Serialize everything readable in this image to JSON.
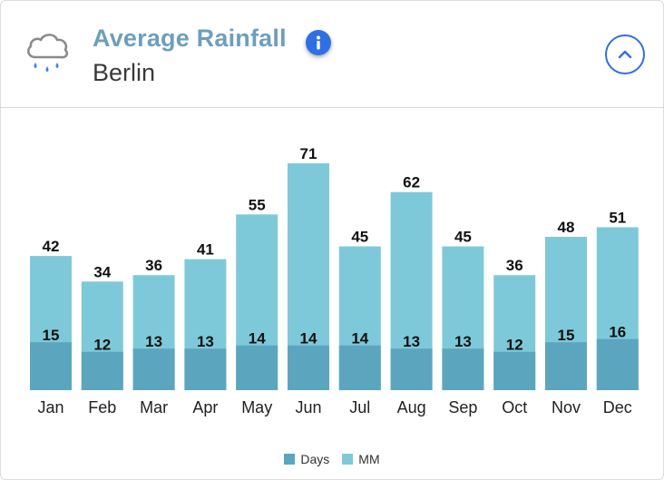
{
  "header": {
    "title": "Average Rainfall",
    "subtitle": "Berlin",
    "icon": "rain-cloud-icon",
    "info_icon": "info-icon",
    "collapse_icon": "chevron-up-icon"
  },
  "colors": {
    "title": "#6d9fbc",
    "accent": "#2f6fe4",
    "mm_bar": "#7ec9d9",
    "days_bar": "#5ba6be",
    "raindrop": "#3b82e8"
  },
  "legend": {
    "days_label": "Days",
    "mm_label": "MM"
  },
  "chart_data": {
    "type": "bar",
    "title": "Average Rainfall",
    "categories": [
      "Jan",
      "Feb",
      "Mar",
      "Apr",
      "May",
      "Jun",
      "Jul",
      "Aug",
      "Sep",
      "Oct",
      "Nov",
      "Dec"
    ],
    "series": [
      {
        "name": "Days",
        "values": [
          15,
          12,
          13,
          13,
          14,
          14,
          14,
          13,
          13,
          12,
          15,
          16
        ]
      },
      {
        "name": "MM",
        "values": [
          42,
          34,
          36,
          41,
          55,
          71,
          45,
          62,
          45,
          36,
          48,
          51
        ]
      }
    ],
    "overlapping": true,
    "xlabel": "",
    "ylabel": "",
    "ylim": [
      0,
      71
    ],
    "grid": false,
    "legend_position": "bottom-center"
  }
}
